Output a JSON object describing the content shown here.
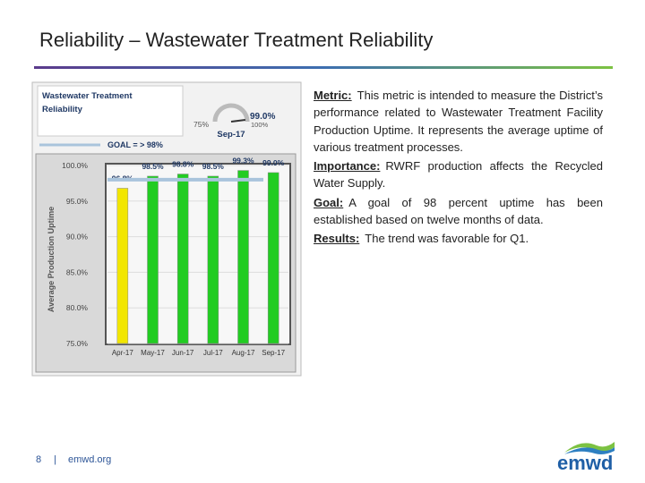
{
  "header": {
    "title": "Reliability – Wastewater Treatment Reliability"
  },
  "chart_data": {
    "type": "bar",
    "title": "Wastewater Treatment Reliability",
    "ylabel": "Average Production Uptime",
    "categories": [
      "Apr-17",
      "May-17",
      "Jun-17",
      "Jul-17",
      "Aug-17",
      "Sep-17"
    ],
    "values": [
      96.8,
      98.5,
      98.8,
      98.5,
      99.3,
      99.0
    ],
    "value_labels": [
      "96.8%",
      "98.5%",
      "98.8%",
      "98.5%",
      "99.3%",
      "99.0%"
    ],
    "colors": [
      "#f2e600",
      "#22cc22",
      "#22cc22",
      "#22cc22",
      "#22cc22",
      "#22cc22"
    ],
    "ylim": [
      75,
      100
    ],
    "yticks": [
      {
        "value": 75,
        "label": "75.0%"
      },
      {
        "value": 80,
        "label": "80.0%"
      },
      {
        "value": 85,
        "label": "85.0%"
      },
      {
        "value": 90,
        "label": "90.0%"
      },
      {
        "value": 95,
        "label": "95.0%"
      },
      {
        "value": 100,
        "label": "100.0%"
      }
    ],
    "grid": true,
    "goal": {
      "value": 98,
      "label": "GOAL = > 98%",
      "color": "#a9c4dc"
    },
    "gauge": {
      "ticks": [
        {
          "value": 75,
          "label": "75%"
        },
        {
          "value": 100,
          "label": "100%"
        }
      ],
      "value": 99.0,
      "value_label": "99.0%",
      "period": "Sep-17"
    }
  },
  "text": {
    "paragraphs": [
      {
        "label": "Metric:",
        "body": "This metric is intended to measure the District’s performance related to Wastewater Treatment Facility Production Uptime. It represents the average uptime of various treatment processes."
      },
      {
        "label": "Importance:",
        "body": "RWRF production affects the Recycled Water Supply."
      },
      {
        "label": "Goal:",
        "body": "A goal of 98 percent uptime has been established based on twelve months of data."
      },
      {
        "label": "Results:",
        "body": "The trend was favorable for Q1."
      }
    ]
  },
  "footer": {
    "page": "8",
    "separator": "|",
    "site": "emwd.org",
    "logo": "emwd"
  }
}
